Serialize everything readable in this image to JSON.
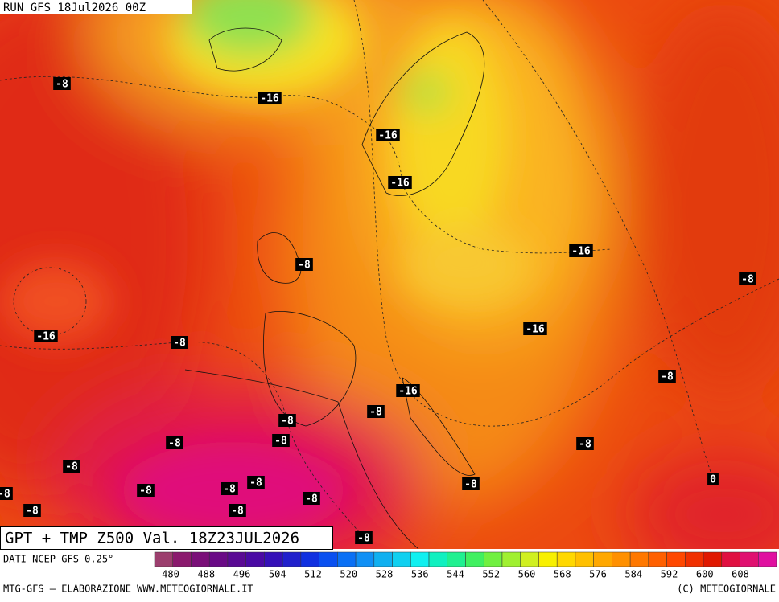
{
  "header": {
    "run": "RUN GFS 18Jul2026 00Z"
  },
  "title": "GPT + TMP Z500 Val. 18Z23JUL2026",
  "contour_labels": [
    "-8",
    "-16",
    "-16",
    "-16",
    "-8",
    "-16",
    "-8",
    "-16",
    "-8",
    "-16",
    "-8",
    "-16",
    "-8",
    "-8",
    "-8",
    "-8",
    "-8",
    "-8",
    "-8",
    "-8",
    "-8",
    "-8",
    "-8",
    "-8",
    "-8",
    "-8",
    "-8",
    "0"
  ],
  "legend": {
    "source": "DATI NCEP GFS 0.25°",
    "labels": [
      480,
      488,
      496,
      504,
      512,
      520,
      528,
      536,
      544,
      552,
      560,
      568,
      576,
      584,
      592,
      600,
      608
    ],
    "colors": [
      "#9c3f6e",
      "#8b1a6e",
      "#7a0f78",
      "#6a0a86",
      "#5a0a94",
      "#4a0aa4",
      "#3510b8",
      "#2020cc",
      "#1030e0",
      "#0a50f0",
      "#0a70f5",
      "#1090f5",
      "#10b0f0",
      "#10d0f0",
      "#10f0f0",
      "#10f0c0",
      "#20f090",
      "#40f060",
      "#70f040",
      "#a0f030",
      "#d0f020",
      "#f8f000",
      "#ffd800",
      "#ffc000",
      "#ffa800",
      "#ff9000",
      "#ff7800",
      "#ff6000",
      "#ff4800",
      "#f03000",
      "#e01800",
      "#e01040",
      "#e01070",
      "#e010a0"
    ]
  },
  "footer": {
    "left": "MTG-GFS – ELABORAZIONE WWW.METEOGIORNALE.IT",
    "right": "(C) METEOGIORNALE"
  }
}
